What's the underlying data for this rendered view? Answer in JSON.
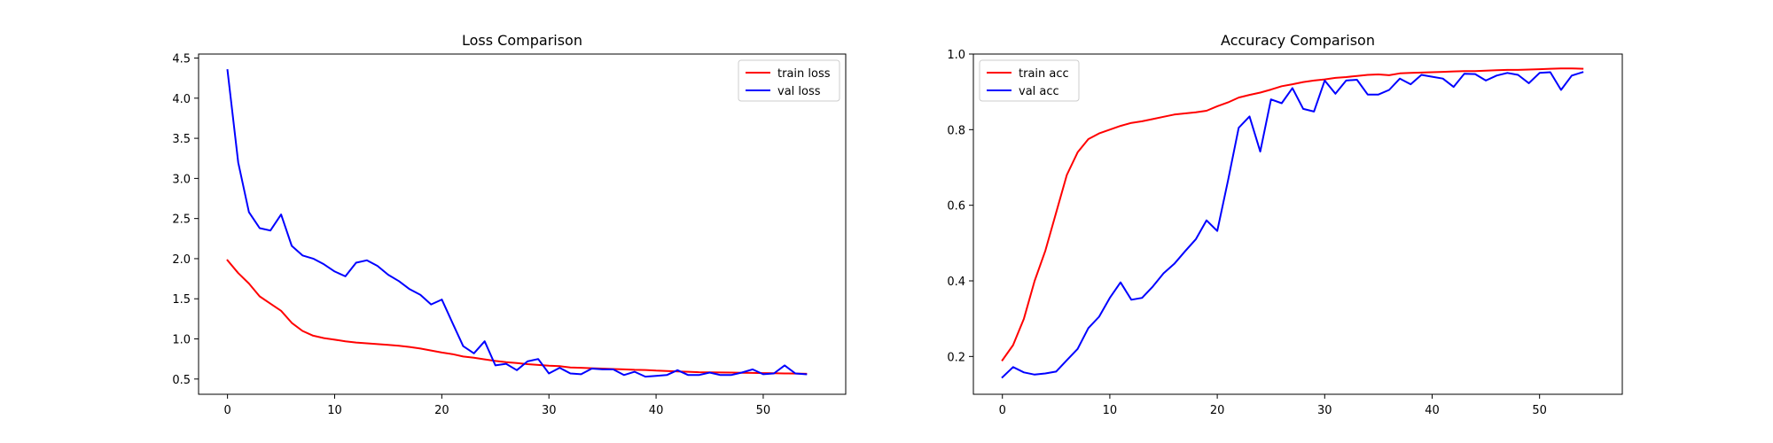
{
  "chart_data": [
    {
      "type": "line",
      "title": "Loss Comparison",
      "xlabel": "",
      "ylabel": "",
      "xlim": [
        -2.7,
        57.7
      ],
      "ylim": [
        0.31,
        4.55
      ],
      "xticks": [
        0,
        10,
        20,
        30,
        40,
        50
      ],
      "yticks": [
        0.5,
        1.0,
        1.5,
        2.0,
        2.5,
        3.0,
        3.5,
        4.0,
        4.5
      ],
      "ytick_labels": [
        "0.5",
        "1.0",
        "1.5",
        "2.0",
        "2.5",
        "3.0",
        "3.5",
        "4.0",
        "4.5"
      ],
      "grid": false,
      "legend_position": "top-right",
      "x": [
        0,
        1,
        2,
        3,
        4,
        5,
        6,
        7,
        8,
        9,
        10,
        11,
        12,
        13,
        14,
        15,
        16,
        17,
        18,
        19,
        20,
        21,
        22,
        23,
        24,
        25,
        26,
        27,
        28,
        29,
        30,
        31,
        32,
        33,
        34,
        35,
        36,
        37,
        38,
        39,
        40,
        41,
        42,
        43,
        44,
        45,
        46,
        47,
        48,
        49,
        50,
        51,
        52,
        53,
        54
      ],
      "series": [
        {
          "name": "train loss",
          "color": "#ff0000",
          "values": [
            1.98,
            1.82,
            1.69,
            1.53,
            1.44,
            1.35,
            1.2,
            1.1,
            1.04,
            1.01,
            0.99,
            0.97,
            0.955,
            0.945,
            0.935,
            0.925,
            0.915,
            0.9,
            0.88,
            0.855,
            0.83,
            0.81,
            0.78,
            0.765,
            0.745,
            0.725,
            0.71,
            0.7,
            0.685,
            0.675,
            0.665,
            0.66,
            0.645,
            0.64,
            0.635,
            0.63,
            0.625,
            0.62,
            0.615,
            0.612,
            0.605,
            0.6,
            0.595,
            0.59,
            0.585,
            0.583,
            0.582,
            0.58,
            0.578,
            0.576,
            0.574,
            0.572,
            0.57,
            0.568,
            0.566
          ]
        },
        {
          "name": "val loss",
          "color": "#0000ff",
          "values": [
            4.35,
            3.2,
            2.58,
            2.38,
            2.35,
            2.55,
            2.16,
            2.04,
            2.0,
            1.93,
            1.84,
            1.78,
            1.95,
            1.98,
            1.91,
            1.8,
            1.72,
            1.62,
            1.55,
            1.43,
            1.49,
            1.2,
            0.91,
            0.82,
            0.97,
            0.67,
            0.69,
            0.61,
            0.72,
            0.75,
            0.57,
            0.64,
            0.57,
            0.56,
            0.63,
            0.62,
            0.62,
            0.55,
            0.59,
            0.53,
            0.54,
            0.55,
            0.61,
            0.55,
            0.55,
            0.58,
            0.55,
            0.55,
            0.58,
            0.62,
            0.56,
            0.57,
            0.67,
            0.57,
            0.56
          ]
        }
      ]
    },
    {
      "type": "line",
      "title": "Accuracy Comparison",
      "xlabel": "",
      "ylabel": "",
      "xlim": [
        -2.7,
        57.7
      ],
      "ylim": [
        0.1,
        1.0
      ],
      "xticks": [
        0,
        10,
        20,
        30,
        40,
        50
      ],
      "yticks": [
        0.2,
        0.4,
        0.6,
        0.8,
        1.0
      ],
      "ytick_labels": [
        "0.2",
        "0.4",
        "0.6",
        "0.8",
        "1.0"
      ],
      "grid": false,
      "legend_position": "top-left",
      "x": [
        0,
        1,
        2,
        3,
        4,
        5,
        6,
        7,
        8,
        9,
        10,
        11,
        12,
        13,
        14,
        15,
        16,
        17,
        18,
        19,
        20,
        21,
        22,
        23,
        24,
        25,
        26,
        27,
        28,
        29,
        30,
        31,
        32,
        33,
        34,
        35,
        36,
        37,
        38,
        39,
        40,
        41,
        42,
        43,
        44,
        45,
        46,
        47,
        48,
        49,
        50,
        51,
        52,
        53,
        54
      ],
      "series": [
        {
          "name": "train acc",
          "color": "#ff0000",
          "values": [
            0.19,
            0.23,
            0.3,
            0.4,
            0.48,
            0.58,
            0.68,
            0.74,
            0.775,
            0.79,
            0.8,
            0.81,
            0.818,
            0.822,
            0.828,
            0.834,
            0.84,
            0.843,
            0.846,
            0.85,
            0.862,
            0.872,
            0.885,
            0.892,
            0.898,
            0.906,
            0.915,
            0.92,
            0.926,
            0.93,
            0.933,
            0.937,
            0.939,
            0.942,
            0.945,
            0.946,
            0.944,
            0.949,
            0.95,
            0.951,
            0.952,
            0.953,
            0.954,
            0.955,
            0.955,
            0.956,
            0.957,
            0.958,
            0.958,
            0.959,
            0.96,
            0.961,
            0.962,
            0.962,
            0.961
          ]
        },
        {
          "name": "val acc",
          "color": "#0000ff",
          "values": [
            0.145,
            0.172,
            0.158,
            0.152,
            0.155,
            0.16,
            0.19,
            0.22,
            0.275,
            0.305,
            0.355,
            0.396,
            0.35,
            0.355,
            0.385,
            0.42,
            0.445,
            0.478,
            0.51,
            0.56,
            0.532,
            0.665,
            0.805,
            0.835,
            0.742,
            0.88,
            0.87,
            0.91,
            0.855,
            0.848,
            0.93,
            0.895,
            0.93,
            0.932,
            0.893,
            0.893,
            0.905,
            0.935,
            0.92,
            0.945,
            0.94,
            0.935,
            0.913,
            0.948,
            0.947,
            0.93,
            0.943,
            0.95,
            0.945,
            0.923,
            0.95,
            0.952,
            0.905,
            0.943,
            0.952
          ]
        }
      ]
    }
  ]
}
